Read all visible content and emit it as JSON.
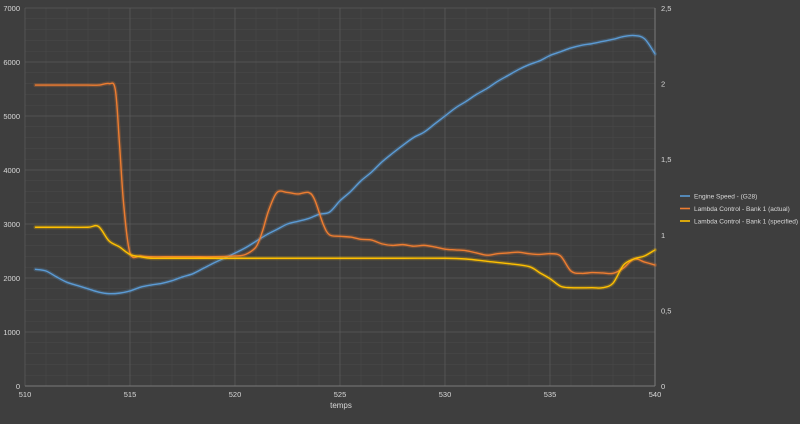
{
  "chart_data": {
    "type": "line",
    "xlabel": "temps",
    "xlim": [
      510,
      540
    ],
    "x_ticks": [
      "510",
      "515",
      "520",
      "525",
      "530",
      "535",
      "540"
    ],
    "y_left_lim": [
      0,
      7000
    ],
    "y_left_ticks": [
      "0",
      "1000",
      "2000",
      "3000",
      "4000",
      "5000",
      "6000",
      "7000"
    ],
    "y_right_lim": [
      0,
      2.5
    ],
    "y_right_ticks": [
      "0",
      "0,5",
      "1",
      "1,5",
      "2",
      "2,5"
    ],
    "grid": true,
    "legend_position": "right",
    "series": [
      {
        "name": "Engine Speed - (G28)",
        "axis": "left",
        "color": "#5b9bd5",
        "points": [
          [
            510.5,
            2160
          ],
          [
            511,
            2130
          ],
          [
            511.5,
            2020
          ],
          [
            512,
            1920
          ],
          [
            512.5,
            1860
          ],
          [
            513,
            1800
          ],
          [
            513.5,
            1740
          ],
          [
            514,
            1710
          ],
          [
            514.5,
            1720
          ],
          [
            515,
            1760
          ],
          [
            515.5,
            1830
          ],
          [
            516,
            1870
          ],
          [
            516.5,
            1900
          ],
          [
            517,
            1950
          ],
          [
            517.5,
            2020
          ],
          [
            518,
            2080
          ],
          [
            518.5,
            2180
          ],
          [
            519,
            2280
          ],
          [
            519.5,
            2370
          ],
          [
            520,
            2460
          ],
          [
            520.5,
            2560
          ],
          [
            521,
            2680
          ],
          [
            521.5,
            2800
          ],
          [
            522,
            2900
          ],
          [
            522.5,
            3000
          ],
          [
            523,
            3050
          ],
          [
            523.5,
            3100
          ],
          [
            524,
            3180
          ],
          [
            524.5,
            3220
          ],
          [
            525,
            3430
          ],
          [
            525.5,
            3600
          ],
          [
            526,
            3800
          ],
          [
            526.5,
            3960
          ],
          [
            527,
            4150
          ],
          [
            527.5,
            4310
          ],
          [
            528,
            4460
          ],
          [
            528.5,
            4600
          ],
          [
            529,
            4700
          ],
          [
            529.5,
            4850
          ],
          [
            530,
            5000
          ],
          [
            530.5,
            5150
          ],
          [
            531,
            5270
          ],
          [
            531.5,
            5400
          ],
          [
            532,
            5510
          ],
          [
            532.5,
            5640
          ],
          [
            533,
            5750
          ],
          [
            533.5,
            5860
          ],
          [
            534,
            5950
          ],
          [
            534.5,
            6020
          ],
          [
            535,
            6120
          ],
          [
            535.5,
            6190
          ],
          [
            536,
            6260
          ],
          [
            536.5,
            6310
          ],
          [
            537,
            6340
          ],
          [
            537.5,
            6380
          ],
          [
            538,
            6420
          ],
          [
            538.5,
            6470
          ],
          [
            539,
            6490
          ],
          [
            539.5,
            6430
          ],
          [
            540,
            6150
          ]
        ]
      },
      {
        "name": "Lambda Control - Bank 1 (actual)",
        "axis": "right",
        "color": "#ed7d31",
        "points": [
          [
            510.5,
            1.99
          ],
          [
            511,
            1.99
          ],
          [
            512,
            1.99
          ],
          [
            513,
            1.99
          ],
          [
            513.5,
            1.99
          ],
          [
            514,
            2.0
          ],
          [
            514.3,
            1.96
          ],
          [
            514.5,
            1.6
          ],
          [
            514.7,
            1.2
          ],
          [
            515,
            0.88
          ],
          [
            515.5,
            0.86
          ],
          [
            516,
            0.855
          ],
          [
            517,
            0.855
          ],
          [
            518,
            0.855
          ],
          [
            519,
            0.855
          ],
          [
            520,
            0.86
          ],
          [
            520.5,
            0.87
          ],
          [
            521,
            0.92
          ],
          [
            521.3,
            1.02
          ],
          [
            521.6,
            1.16
          ],
          [
            522,
            1.28
          ],
          [
            522.5,
            1.28
          ],
          [
            523,
            1.27
          ],
          [
            523.5,
            1.28
          ],
          [
            523.8,
            1.23
          ],
          [
            524.2,
            1.07
          ],
          [
            524.5,
            1.0
          ],
          [
            525,
            0.99
          ],
          [
            525.5,
            0.985
          ],
          [
            526,
            0.97
          ],
          [
            526.5,
            0.965
          ],
          [
            527,
            0.94
          ],
          [
            527.5,
            0.93
          ],
          [
            528,
            0.935
          ],
          [
            528.5,
            0.925
          ],
          [
            529,
            0.93
          ],
          [
            529.5,
            0.92
          ],
          [
            530,
            0.905
          ],
          [
            530.5,
            0.9
          ],
          [
            531,
            0.895
          ],
          [
            531.5,
            0.88
          ],
          [
            532,
            0.865
          ],
          [
            532.5,
            0.875
          ],
          [
            533,
            0.88
          ],
          [
            533.5,
            0.885
          ],
          [
            534,
            0.875
          ],
          [
            534.5,
            0.87
          ],
          [
            535,
            0.875
          ],
          [
            535.5,
            0.86
          ],
          [
            536,
            0.76
          ],
          [
            536.5,
            0.745
          ],
          [
            537,
            0.75
          ],
          [
            537.5,
            0.748
          ],
          [
            538,
            0.745
          ],
          [
            538.5,
            0.78
          ],
          [
            539,
            0.84
          ],
          [
            539.5,
            0.82
          ],
          [
            540,
            0.8
          ]
        ]
      },
      {
        "name": "Lambda Control - Bank 1 (specified)",
        "axis": "right",
        "color": "#ffc000",
        "points": [
          [
            510.5,
            1.05
          ],
          [
            511,
            1.05
          ],
          [
            512,
            1.05
          ],
          [
            513,
            1.05
          ],
          [
            513.5,
            1.055
          ],
          [
            514,
            0.96
          ],
          [
            514.5,
            0.92
          ],
          [
            515,
            0.87
          ],
          [
            515.5,
            0.855
          ],
          [
            516,
            0.845
          ],
          [
            517,
            0.845
          ],
          [
            518,
            0.845
          ],
          [
            520,
            0.845
          ],
          [
            522,
            0.845
          ],
          [
            524,
            0.845
          ],
          [
            526,
            0.845
          ],
          [
            528,
            0.845
          ],
          [
            530,
            0.845
          ],
          [
            531,
            0.84
          ],
          [
            532,
            0.825
          ],
          [
            533,
            0.81
          ],
          [
            534,
            0.79
          ],
          [
            534.5,
            0.75
          ],
          [
            535,
            0.71
          ],
          [
            535.5,
            0.66
          ],
          [
            536,
            0.65
          ],
          [
            537,
            0.65
          ],
          [
            537.5,
            0.65
          ],
          [
            538,
            0.68
          ],
          [
            538.5,
            0.8
          ],
          [
            539,
            0.84
          ],
          [
            539.5,
            0.86
          ],
          [
            540,
            0.9
          ]
        ]
      }
    ]
  }
}
